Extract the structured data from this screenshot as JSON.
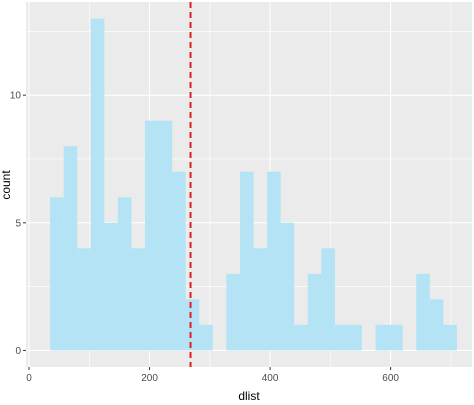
{
  "chart_data": {
    "type": "bar",
    "subtype": "histogram",
    "title": "",
    "xlabel": "dlist",
    "ylabel": "count",
    "xlim": [
      -5,
      735
    ],
    "ylim": [
      -0.65,
      13.65
    ],
    "x_ticks": [
      0,
      200,
      400,
      600
    ],
    "y_ticks": [
      0,
      5,
      10
    ],
    "x_tick_labels": [
      "0",
      "200",
      "400",
      "600"
    ],
    "y_tick_labels": [
      "0",
      "5",
      "10"
    ],
    "grid": true,
    "bin_width": 22.5,
    "bins": [
      {
        "x0": 35.0,
        "x1": 57.5,
        "count": 6
      },
      {
        "x0": 57.5,
        "x1": 80.0,
        "count": 8
      },
      {
        "x0": 80.0,
        "x1": 102.5,
        "count": 4
      },
      {
        "x0": 102.5,
        "x1": 125.0,
        "count": 13
      },
      {
        "x0": 125.0,
        "x1": 147.5,
        "count": 5
      },
      {
        "x0": 147.5,
        "x1": 170.0,
        "count": 6
      },
      {
        "x0": 170.0,
        "x1": 192.5,
        "count": 4
      },
      {
        "x0": 192.5,
        "x1": 215.0,
        "count": 9
      },
      {
        "x0": 215.0,
        "x1": 237.5,
        "count": 9
      },
      {
        "x0": 237.5,
        "x1": 260.0,
        "count": 7
      },
      {
        "x0": 260.0,
        "x1": 282.5,
        "count": 2
      },
      {
        "x0": 282.5,
        "x1": 305.0,
        "count": 1
      },
      {
        "x0": 305.0,
        "x1": 327.5,
        "count": 0
      },
      {
        "x0": 327.5,
        "x1": 350.0,
        "count": 3
      },
      {
        "x0": 350.0,
        "x1": 372.5,
        "count": 7
      },
      {
        "x0": 372.5,
        "x1": 395.0,
        "count": 4
      },
      {
        "x0": 395.0,
        "x1": 417.5,
        "count": 7
      },
      {
        "x0": 417.5,
        "x1": 440.0,
        "count": 5
      },
      {
        "x0": 440.0,
        "x1": 462.5,
        "count": 1
      },
      {
        "x0": 462.5,
        "x1": 485.0,
        "count": 3
      },
      {
        "x0": 485.0,
        "x1": 507.5,
        "count": 4
      },
      {
        "x0": 507.5,
        "x1": 530.0,
        "count": 1
      },
      {
        "x0": 530.0,
        "x1": 552.5,
        "count": 1
      },
      {
        "x0": 552.5,
        "x1": 575.0,
        "count": 0
      },
      {
        "x0": 575.0,
        "x1": 597.5,
        "count": 1
      },
      {
        "x0": 597.5,
        "x1": 620.0,
        "count": 1
      },
      {
        "x0": 620.0,
        "x1": 642.5,
        "count": 0
      },
      {
        "x0": 642.5,
        "x1": 665.0,
        "count": 3
      },
      {
        "x0": 665.0,
        "x1": 687.5,
        "count": 2
      },
      {
        "x0": 687.5,
        "x1": 710.0,
        "count": 1
      }
    ],
    "vline": {
      "x": 268,
      "style": "dashed"
    },
    "colors": {
      "bar_fill": "#b3e3f5",
      "panel_background": "#ebebeb",
      "grid": "#ffffff",
      "vline": "#dd1f1f"
    }
  }
}
